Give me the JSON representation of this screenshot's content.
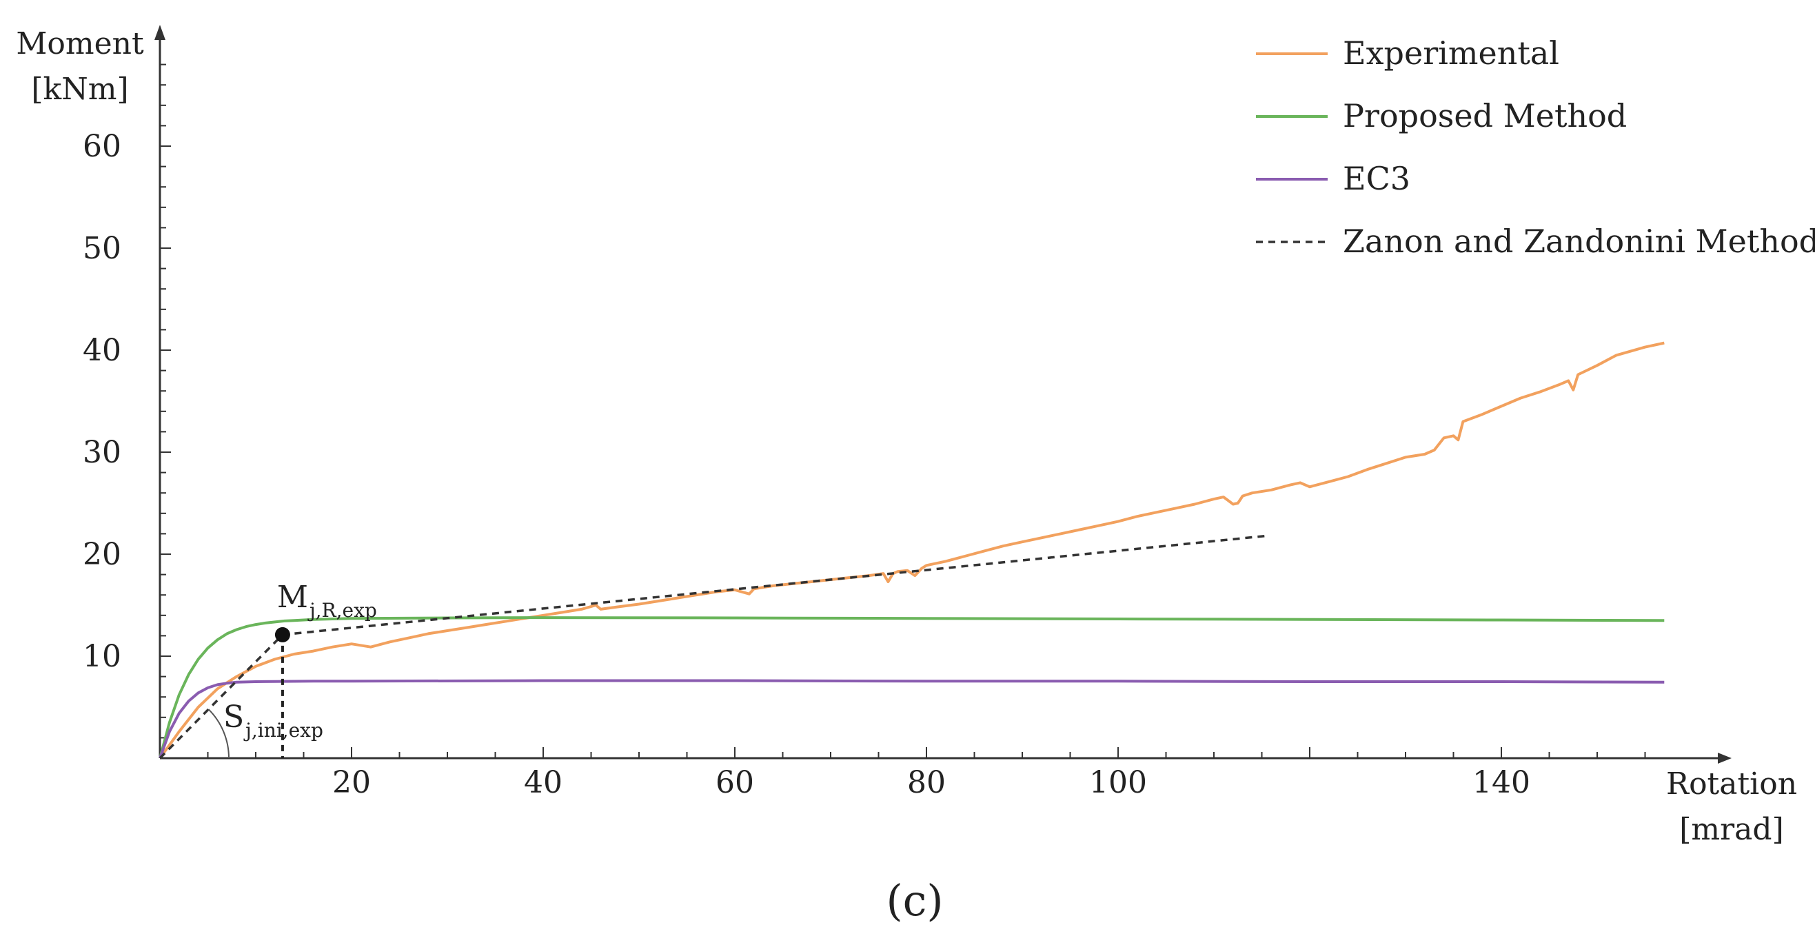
{
  "chart_data": {
    "type": "line",
    "xlabel": [
      "Rotation",
      "[mrad]"
    ],
    "ylabel": [
      "Moment",
      "[kNm]"
    ],
    "xlim": [
      0,
      160
    ],
    "ylim": [
      0,
      70
    ],
    "x_ticks": [
      20,
      40,
      60,
      80,
      100,
      140
    ],
    "y_ticks": [
      10,
      20,
      30,
      40,
      50,
      60
    ],
    "grid": false,
    "legend_position": "top-right",
    "panel_label": "(c)",
    "series": [
      {
        "name": "Experimental",
        "color": "#F2A15E",
        "dash": "solid",
        "x": [
          0,
          2,
          4,
          6,
          8,
          10,
          12,
          14,
          16,
          18,
          20,
          22,
          24,
          26,
          28,
          30,
          32,
          34,
          36,
          38,
          40,
          42,
          44,
          45.5,
          46,
          47.5,
          50,
          52,
          54,
          56,
          58,
          60,
          61.5,
          62,
          64,
          66,
          68,
          70,
          72,
          74,
          75.5,
          76,
          76.5,
          77,
          78,
          78.8,
          79.5,
          80,
          82,
          84,
          86,
          88,
          90,
          92,
          94,
          96,
          98,
          100,
          102,
          104,
          106,
          108,
          110,
          111,
          112,
          112.5,
          113,
          114,
          116,
          118,
          119,
          120,
          122,
          124,
          126,
          128,
          130,
          132,
          133,
          134,
          135,
          135.5,
          136,
          138,
          140,
          142,
          144,
          146,
          147,
          147.5,
          148,
          150,
          152,
          155,
          157
        ],
        "y": [
          0,
          2.6,
          5,
          6.8,
          8,
          9,
          9.7,
          10.2,
          10.5,
          10.9,
          11.2,
          10.9,
          11.4,
          11.8,
          12.2,
          12.5,
          12.8,
          13.1,
          13.4,
          13.7,
          14,
          14.3,
          14.6,
          15,
          14.6,
          14.8,
          15.1,
          15.4,
          15.7,
          16,
          16.3,
          16.5,
          16.1,
          16.6,
          16.9,
          17.1,
          17.3,
          17.5,
          17.7,
          17.9,
          18.1,
          17.3,
          18.1,
          18.3,
          18.4,
          17.9,
          18.6,
          18.9,
          19.3,
          19.8,
          20.3,
          20.8,
          21.2,
          21.6,
          22,
          22.4,
          22.8,
          23.2,
          23.7,
          24.1,
          24.5,
          24.9,
          25.4,
          25.6,
          24.9,
          25,
          25.7,
          26,
          26.3,
          26.8,
          27,
          26.6,
          27.1,
          27.6,
          28.3,
          28.9,
          29.5,
          29.8,
          30.2,
          31.4,
          31.6,
          31.2,
          33,
          33.7,
          34.5,
          35.3,
          35.9,
          36.6,
          37,
          36.1,
          37.6,
          38.5,
          39.5,
          40.3,
          40.7
        ]
      },
      {
        "name": "Proposed Method",
        "color": "#6AB55B",
        "dash": "solid",
        "x": [
          0,
          1,
          2,
          3,
          4,
          5,
          6,
          7,
          8,
          9,
          10,
          11,
          12,
          13,
          14,
          16,
          18,
          20,
          30,
          40,
          60,
          80,
          100,
          120,
          140,
          157
        ],
        "y": [
          0,
          3.5,
          6.2,
          8.2,
          9.7,
          10.8,
          11.6,
          12.2,
          12.6,
          12.9,
          13.1,
          13.25,
          13.35,
          13.45,
          13.5,
          13.6,
          13.65,
          13.7,
          13.75,
          13.78,
          13.75,
          13.7,
          13.65,
          13.6,
          13.55,
          13.5
        ]
      },
      {
        "name": "EC3",
        "color": "#8A5CB0",
        "dash": "solid",
        "x": [
          0,
          1,
          2,
          3,
          4,
          5,
          6,
          7,
          8,
          10,
          12,
          16,
          20,
          40,
          60,
          80,
          100,
          120,
          140,
          157
        ],
        "y": [
          0,
          2.6,
          4.4,
          5.6,
          6.4,
          6.9,
          7.2,
          7.35,
          7.45,
          7.5,
          7.52,
          7.55,
          7.55,
          7.6,
          7.6,
          7.55,
          7.55,
          7.5,
          7.5,
          7.45
        ]
      },
      {
        "name": "Zanon and Zandonini Method",
        "color": "#333333",
        "dash": "dashed",
        "x": [
          0,
          12.8,
          115.5
        ],
        "y": [
          0,
          12.1,
          21.8
        ]
      }
    ],
    "annotations": [
      {
        "text": "M",
        "subscript": "j,R,exp",
        "at": [
          12.8,
          12.1
        ],
        "marker": "filled-circle",
        "drop_line": "dashed"
      },
      {
        "text": "S",
        "subscript": "j,ini,exp",
        "marker": "angle-arc"
      }
    ]
  }
}
